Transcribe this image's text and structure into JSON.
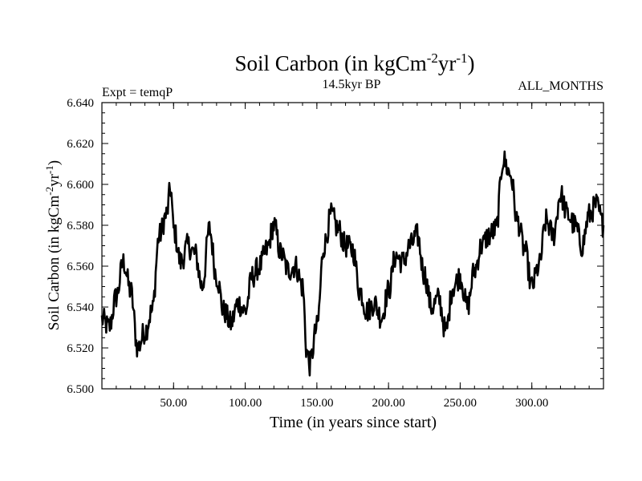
{
  "chart_data": {
    "type": "line",
    "title_main": "Soil Carbon (in kgCm",
    "title_sup1": "-2",
    "title_mid": "yr",
    "title_sup2": "-1",
    "title_end": ")",
    "subtitle": "14.5kyr BP",
    "experiment_label": "Expt = temqP",
    "period_label": "ALL_MONTHS",
    "xlabel": "Time (in years since start)",
    "ylabel_main": "Soil Carbon (in kgCm",
    "ylabel_sup1": "-2",
    "ylabel_mid": "yr",
    "ylabel_sup2": "-1",
    "ylabel_end": ")",
    "xlim": [
      0,
      350
    ],
    "ylim": [
      6.5,
      6.64
    ],
    "x_ticks": [
      50,
      100,
      150,
      200,
      250,
      300
    ],
    "x_tick_labels": [
      "50.00",
      "100.00",
      "150.00",
      "200.00",
      "250.00",
      "300.00"
    ],
    "y_ticks": [
      6.5,
      6.52,
      6.54,
      6.56,
      6.58,
      6.6,
      6.62,
      6.64
    ],
    "y_tick_labels": [
      "6.500",
      "6.520",
      "6.540",
      "6.560",
      "6.580",
      "6.600",
      "6.620",
      "6.640"
    ],
    "line_color": "#000000",
    "series": [
      {
        "name": "Soil Carbon",
        "x": [
          0,
          5,
          10,
          15,
          20,
          25,
          30,
          35,
          40,
          45,
          48,
          50,
          55,
          60,
          65,
          70,
          75,
          80,
          85,
          90,
          95,
          100,
          105,
          110,
          115,
          120,
          125,
          130,
          135,
          140,
          143,
          145,
          150,
          155,
          160,
          165,
          170,
          175,
          180,
          185,
          190,
          195,
          200,
          205,
          210,
          215,
          220,
          225,
          230,
          235,
          240,
          245,
          250,
          255,
          260,
          265,
          270,
          275,
          280,
          285,
          290,
          295,
          300,
          305,
          310,
          315,
          320,
          325,
          330,
          335,
          340,
          345,
          350
        ],
        "y": [
          6.534,
          6.53,
          6.545,
          6.562,
          6.548,
          6.52,
          6.528,
          6.538,
          6.575,
          6.585,
          6.598,
          6.578,
          6.562,
          6.57,
          6.566,
          6.55,
          6.578,
          6.555,
          6.538,
          6.532,
          6.542,
          6.538,
          6.555,
          6.56,
          6.568,
          6.58,
          6.566,
          6.558,
          6.56,
          6.55,
          6.518,
          6.512,
          6.53,
          6.57,
          6.585,
          6.578,
          6.57,
          6.568,
          6.548,
          6.538,
          6.542,
          6.535,
          6.548,
          6.565,
          6.562,
          6.57,
          6.575,
          6.556,
          6.54,
          6.544,
          6.528,
          6.55,
          6.555,
          6.54,
          6.558,
          6.57,
          6.575,
          6.578,
          6.612,
          6.605,
          6.582,
          6.568,
          6.55,
          6.56,
          6.582,
          6.575,
          6.595,
          6.585,
          6.58,
          6.57,
          6.585,
          6.59,
          6.58
        ]
      }
    ]
  }
}
